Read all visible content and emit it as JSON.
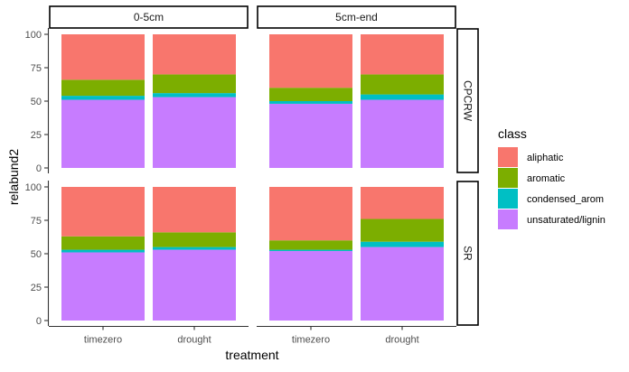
{
  "chart_data": {
    "type": "bar",
    "stacked": true,
    "facet_cols": [
      "0-5cm",
      "5cm-end"
    ],
    "facet_rows": [
      "CPCRW",
      "SR"
    ],
    "categories": [
      "timezero",
      "drought"
    ],
    "xlabel": "treatment",
    "ylabel": "relabund2",
    "ylim": [
      0,
      100
    ],
    "yticks": [
      "0",
      "25",
      "50",
      "75",
      "100"
    ],
    "legend_title": "class",
    "legend_position": "right",
    "grid": false,
    "series": [
      {
        "name": "aliphatic",
        "color": "#F8766D"
      },
      {
        "name": "aromatic",
        "color": "#7CAE00"
      },
      {
        "name": "condensed_arom",
        "color": "#00BFC4"
      },
      {
        "name": "unsaturated/lignin",
        "color": "#C77CFF"
      }
    ],
    "stack_order_bottom_to_top": [
      "unsaturated/lignin",
      "condensed_arom",
      "aromatic",
      "aliphatic"
    ],
    "panels": [
      {
        "col": "0-5cm",
        "row": "CPCRW",
        "values": {
          "timezero": {
            "unsaturated/lignin": 51,
            "condensed_arom": 3,
            "aromatic": 12,
            "aliphatic": 34
          },
          "drought": {
            "unsaturated/lignin": 53,
            "condensed_arom": 3,
            "aromatic": 14,
            "aliphatic": 30
          }
        }
      },
      {
        "col": "5cm-end",
        "row": "CPCRW",
        "values": {
          "timezero": {
            "unsaturated/lignin": 48,
            "condensed_arom": 2,
            "aromatic": 10,
            "aliphatic": 40
          },
          "drought": {
            "unsaturated/lignin": 51,
            "condensed_arom": 4,
            "aromatic": 15,
            "aliphatic": 30
          }
        }
      },
      {
        "col": "0-5cm",
        "row": "SR",
        "values": {
          "timezero": {
            "unsaturated/lignin": 51,
            "condensed_arom": 2,
            "aromatic": 10,
            "aliphatic": 37
          },
          "drought": {
            "unsaturated/lignin": 53,
            "condensed_arom": 2,
            "aromatic": 11,
            "aliphatic": 34
          }
        }
      },
      {
        "col": "5cm-end",
        "row": "SR",
        "values": {
          "timezero": {
            "unsaturated/lignin": 52,
            "condensed_arom": 1,
            "aromatic": 7,
            "aliphatic": 40
          },
          "drought": {
            "unsaturated/lignin": 55,
            "condensed_arom": 4,
            "aromatic": 17,
            "aliphatic": 24
          }
        }
      }
    ]
  }
}
